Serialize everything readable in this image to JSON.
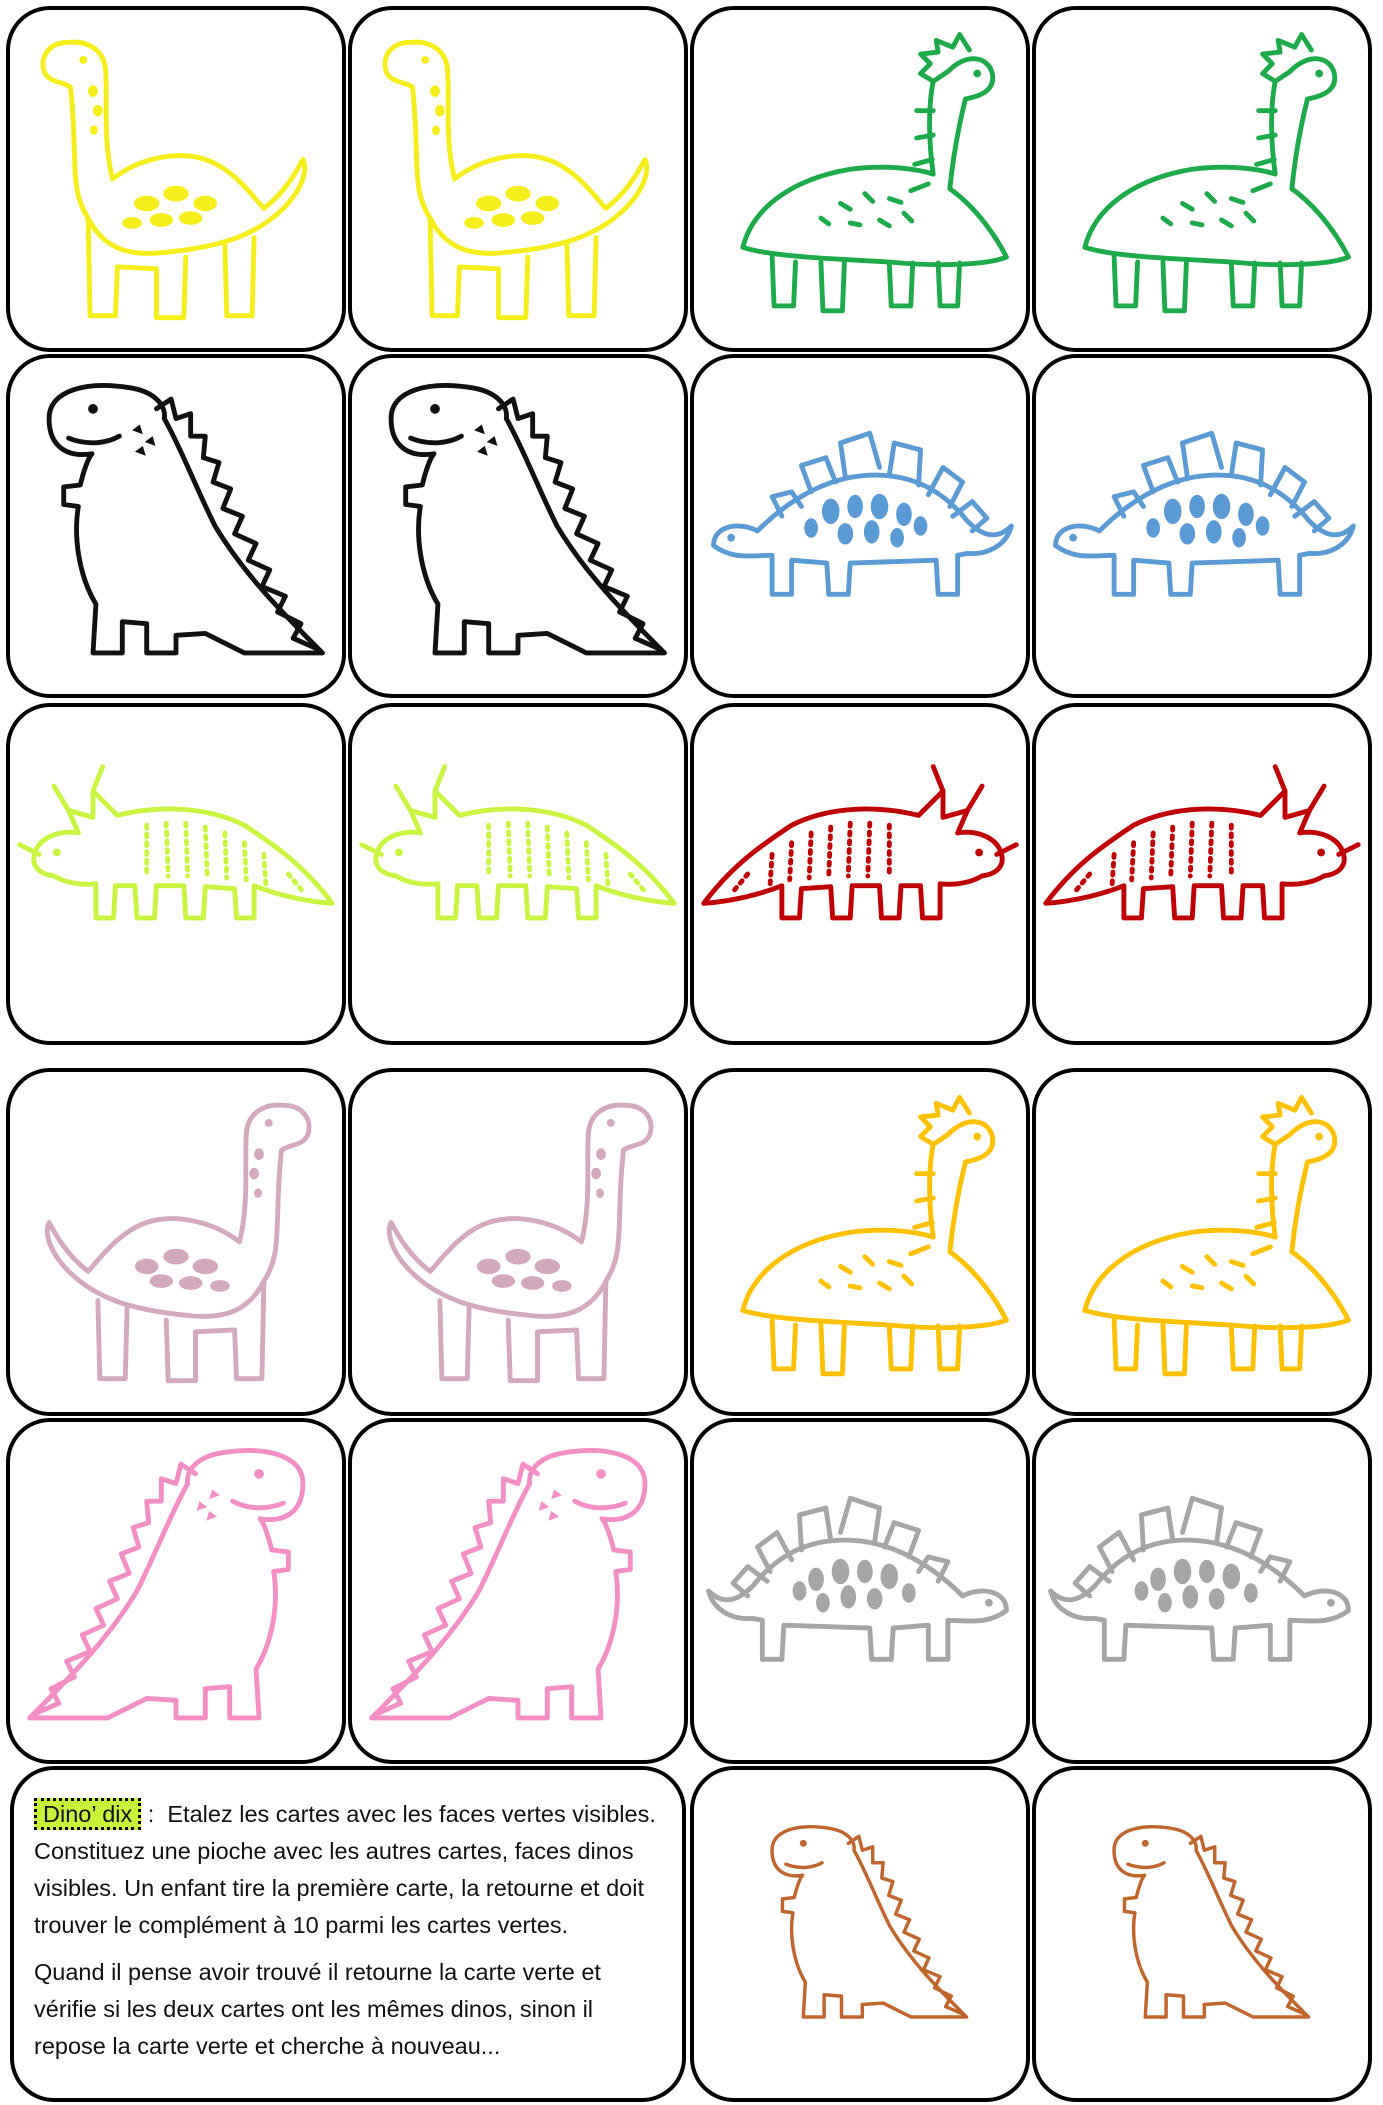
{
  "game": {
    "title": "Dino’ dix",
    "separator": " :",
    "paragraph_1": "Etalez les cartes avec les faces vertes visibles. Constituez une pioche avec les autres cartes, faces dinos visibles. Un enfant tire la première carte, la retourne et doit trouver le complément à 10 parmi les cartes vertes.",
    "paragraph_2": "Quand il pense avoir trouvé il retourne la carte verte et vérifie si les deux cartes ont les mêmes dinos, sinon il repose la carte verte et cherche à nouveau..."
  },
  "cards": [
    {
      "dino": "brachiosaurus",
      "color": "#f5ee1a",
      "facing": "left"
    },
    {
      "dino": "brachiosaurus",
      "color": "#f5ee1a",
      "facing": "left"
    },
    {
      "dino": "spiky-longneck",
      "color": "#1faa4a",
      "facing": "right"
    },
    {
      "dino": "spiky-longneck",
      "color": "#1faa4a",
      "facing": "right"
    },
    {
      "dino": "trex",
      "color": "#111111",
      "facing": "left"
    },
    {
      "dino": "trex",
      "color": "#111111",
      "facing": "left"
    },
    {
      "dino": "stegosaurus",
      "color": "#5b9bd5",
      "facing": "left"
    },
    {
      "dino": "stegosaurus",
      "color": "#5b9bd5",
      "facing": "left"
    },
    {
      "dino": "triceratops",
      "color": "#c9f542",
      "facing": "left"
    },
    {
      "dino": "triceratops",
      "color": "#c9f542",
      "facing": "left"
    },
    {
      "dino": "triceratops",
      "color": "#c00000",
      "facing": "right"
    },
    {
      "dino": "triceratops",
      "color": "#c00000",
      "facing": "right"
    },
    {
      "dino": "brachiosaurus",
      "color": "#d4a8bd",
      "facing": "right"
    },
    {
      "dino": "brachiosaurus",
      "color": "#d4a8bd",
      "facing": "right"
    },
    {
      "dino": "spiky-longneck",
      "color": "#ffc000",
      "facing": "right"
    },
    {
      "dino": "spiky-longneck",
      "color": "#ffc000",
      "facing": "right"
    },
    {
      "dino": "trex",
      "color": "#f48fc6",
      "facing": "right"
    },
    {
      "dino": "trex",
      "color": "#f48fc6",
      "facing": "right"
    },
    {
      "dino": "stegosaurus",
      "color": "#a6a6a6",
      "facing": "right"
    },
    {
      "dino": "stegosaurus",
      "color": "#a6a6a6",
      "facing": "right"
    },
    {
      "dino": "small-trex",
      "color": "#c0652b",
      "facing": "right"
    },
    {
      "dino": "small-trex",
      "color": "#c0652b",
      "facing": "right"
    }
  ]
}
